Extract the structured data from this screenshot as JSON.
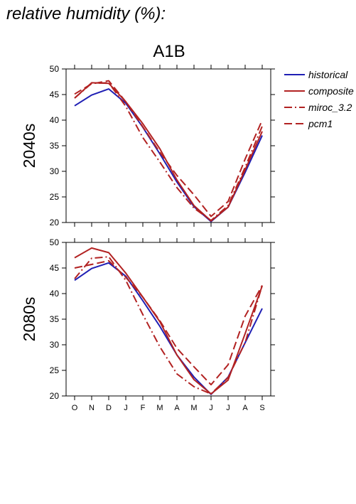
{
  "heading": "relative humidity (%):",
  "scenario": "A1B",
  "legend": [
    {
      "name": "historical",
      "color": "#1f1fb4",
      "dash": "solid"
    },
    {
      "name": "composite",
      "color": "#b22222",
      "dash": "solid"
    },
    {
      "name": "miroc_3.2",
      "color": "#b22222",
      "dash": "dashdot"
    },
    {
      "name": "pcm1",
      "color": "#b22222",
      "dash": "dashed"
    }
  ],
  "chart_data": [
    {
      "type": "line",
      "ylabel": "2040s",
      "ylim": [
        20,
        50
      ],
      "yticks": [
        20,
        25,
        30,
        35,
        40,
        45,
        50
      ],
      "categories": [
        "O",
        "N",
        "D",
        "J",
        "F",
        "M",
        "A",
        "M",
        "J",
        "J",
        "A",
        "S"
      ],
      "series": [
        {
          "name": "historical",
          "values": [
            42.8,
            44.9,
            46.1,
            43.3,
            38.6,
            33.4,
            27.9,
            23.1,
            20.2,
            23.0,
            29.8,
            37.0
          ]
        },
        {
          "name": "composite",
          "values": [
            44.3,
            47.3,
            47.2,
            43.6,
            39.3,
            34.4,
            28.3,
            23.3,
            20.3,
            23.0,
            30.3,
            37.8
          ]
        },
        {
          "name": "miroc_3.2",
          "values": [
            44.3,
            47.2,
            47.3,
            42.7,
            36.6,
            31.8,
            26.8,
            22.8,
            20.4,
            23.3,
            30.8,
            38.8
          ]
        },
        {
          "name": "pcm1",
          "values": [
            45.1,
            47.1,
            47.7,
            43.6,
            38.7,
            33.7,
            29.2,
            25.4,
            21.2,
            24.1,
            32.4,
            40.0
          ]
        }
      ]
    },
    {
      "type": "line",
      "ylabel": "2080s",
      "ylim": [
        20,
        50
      ],
      "yticks": [
        20,
        25,
        30,
        35,
        40,
        45,
        50
      ],
      "categories": [
        "O",
        "N",
        "D",
        "J",
        "F",
        "M",
        "A",
        "M",
        "J",
        "J",
        "A",
        "S"
      ],
      "series": [
        {
          "name": "historical",
          "values": [
            42.6,
            44.9,
            46.0,
            43.4,
            38.6,
            33.6,
            28.0,
            23.7,
            20.3,
            23.7,
            30.4,
            37.1
          ]
        },
        {
          "name": "composite",
          "values": [
            47.0,
            48.9,
            48.0,
            44.0,
            39.3,
            34.5,
            28.0,
            23.2,
            20.4,
            23.1,
            32.2,
            41.5
          ]
        },
        {
          "name": "miroc_3.2",
          "values": [
            42.9,
            46.9,
            47.2,
            42.6,
            35.9,
            29.6,
            24.3,
            21.8,
            20.4,
            23.6,
            30.4,
            41.6
          ]
        },
        {
          "name": "pcm1",
          "values": [
            45.0,
            45.7,
            46.4,
            43.2,
            39.3,
            34.7,
            29.3,
            25.7,
            22.2,
            26.1,
            35.6,
            41.6
          ]
        }
      ]
    }
  ]
}
